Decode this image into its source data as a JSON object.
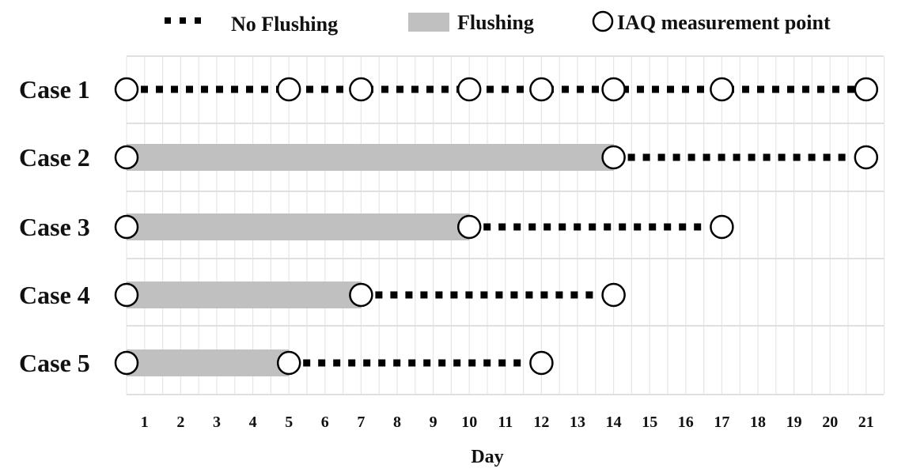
{
  "chart_data": {
    "type": "timeline",
    "xlabel": "Day",
    "x_ticks": [
      1,
      2,
      3,
      4,
      5,
      6,
      7,
      8,
      9,
      10,
      11,
      12,
      13,
      14,
      15,
      16,
      17,
      18,
      19,
      20,
      21
    ],
    "xlim": [
      1,
      21
    ],
    "grid": true,
    "legend_position": "top",
    "legend": [
      {
        "key": "no_flushing",
        "label": "No Flushing",
        "style": "dotted"
      },
      {
        "key": "flushing",
        "label": "Flushing",
        "style": "bar"
      },
      {
        "key": "measurement",
        "label": "IAQ measurement point",
        "style": "open-circle"
      }
    ],
    "colors": {
      "flushing": "#c0c0c0",
      "no_flushing": "#000000",
      "grid": "#e6e6e6"
    },
    "cases": [
      {
        "label": "Case 1",
        "flushing": null,
        "no_flushing": [
          1,
          21
        ],
        "measurement_points": [
          1,
          5,
          7,
          10,
          12,
          14,
          17,
          21
        ]
      },
      {
        "label": "Case 2",
        "flushing": [
          1,
          14
        ],
        "no_flushing": [
          14,
          21
        ],
        "measurement_points": [
          1,
          14,
          21
        ]
      },
      {
        "label": "Case 3",
        "flushing": [
          1,
          10
        ],
        "no_flushing": [
          10,
          17
        ],
        "measurement_points": [
          1,
          10,
          17
        ]
      },
      {
        "label": "Case 4",
        "flushing": [
          1,
          7
        ],
        "no_flushing": [
          7,
          14
        ],
        "measurement_points": [
          1,
          7,
          14
        ]
      },
      {
        "label": "Case 5",
        "flushing": [
          1,
          5
        ],
        "no_flushing": [
          5,
          12
        ],
        "measurement_points": [
          1,
          5,
          12
        ]
      }
    ]
  }
}
